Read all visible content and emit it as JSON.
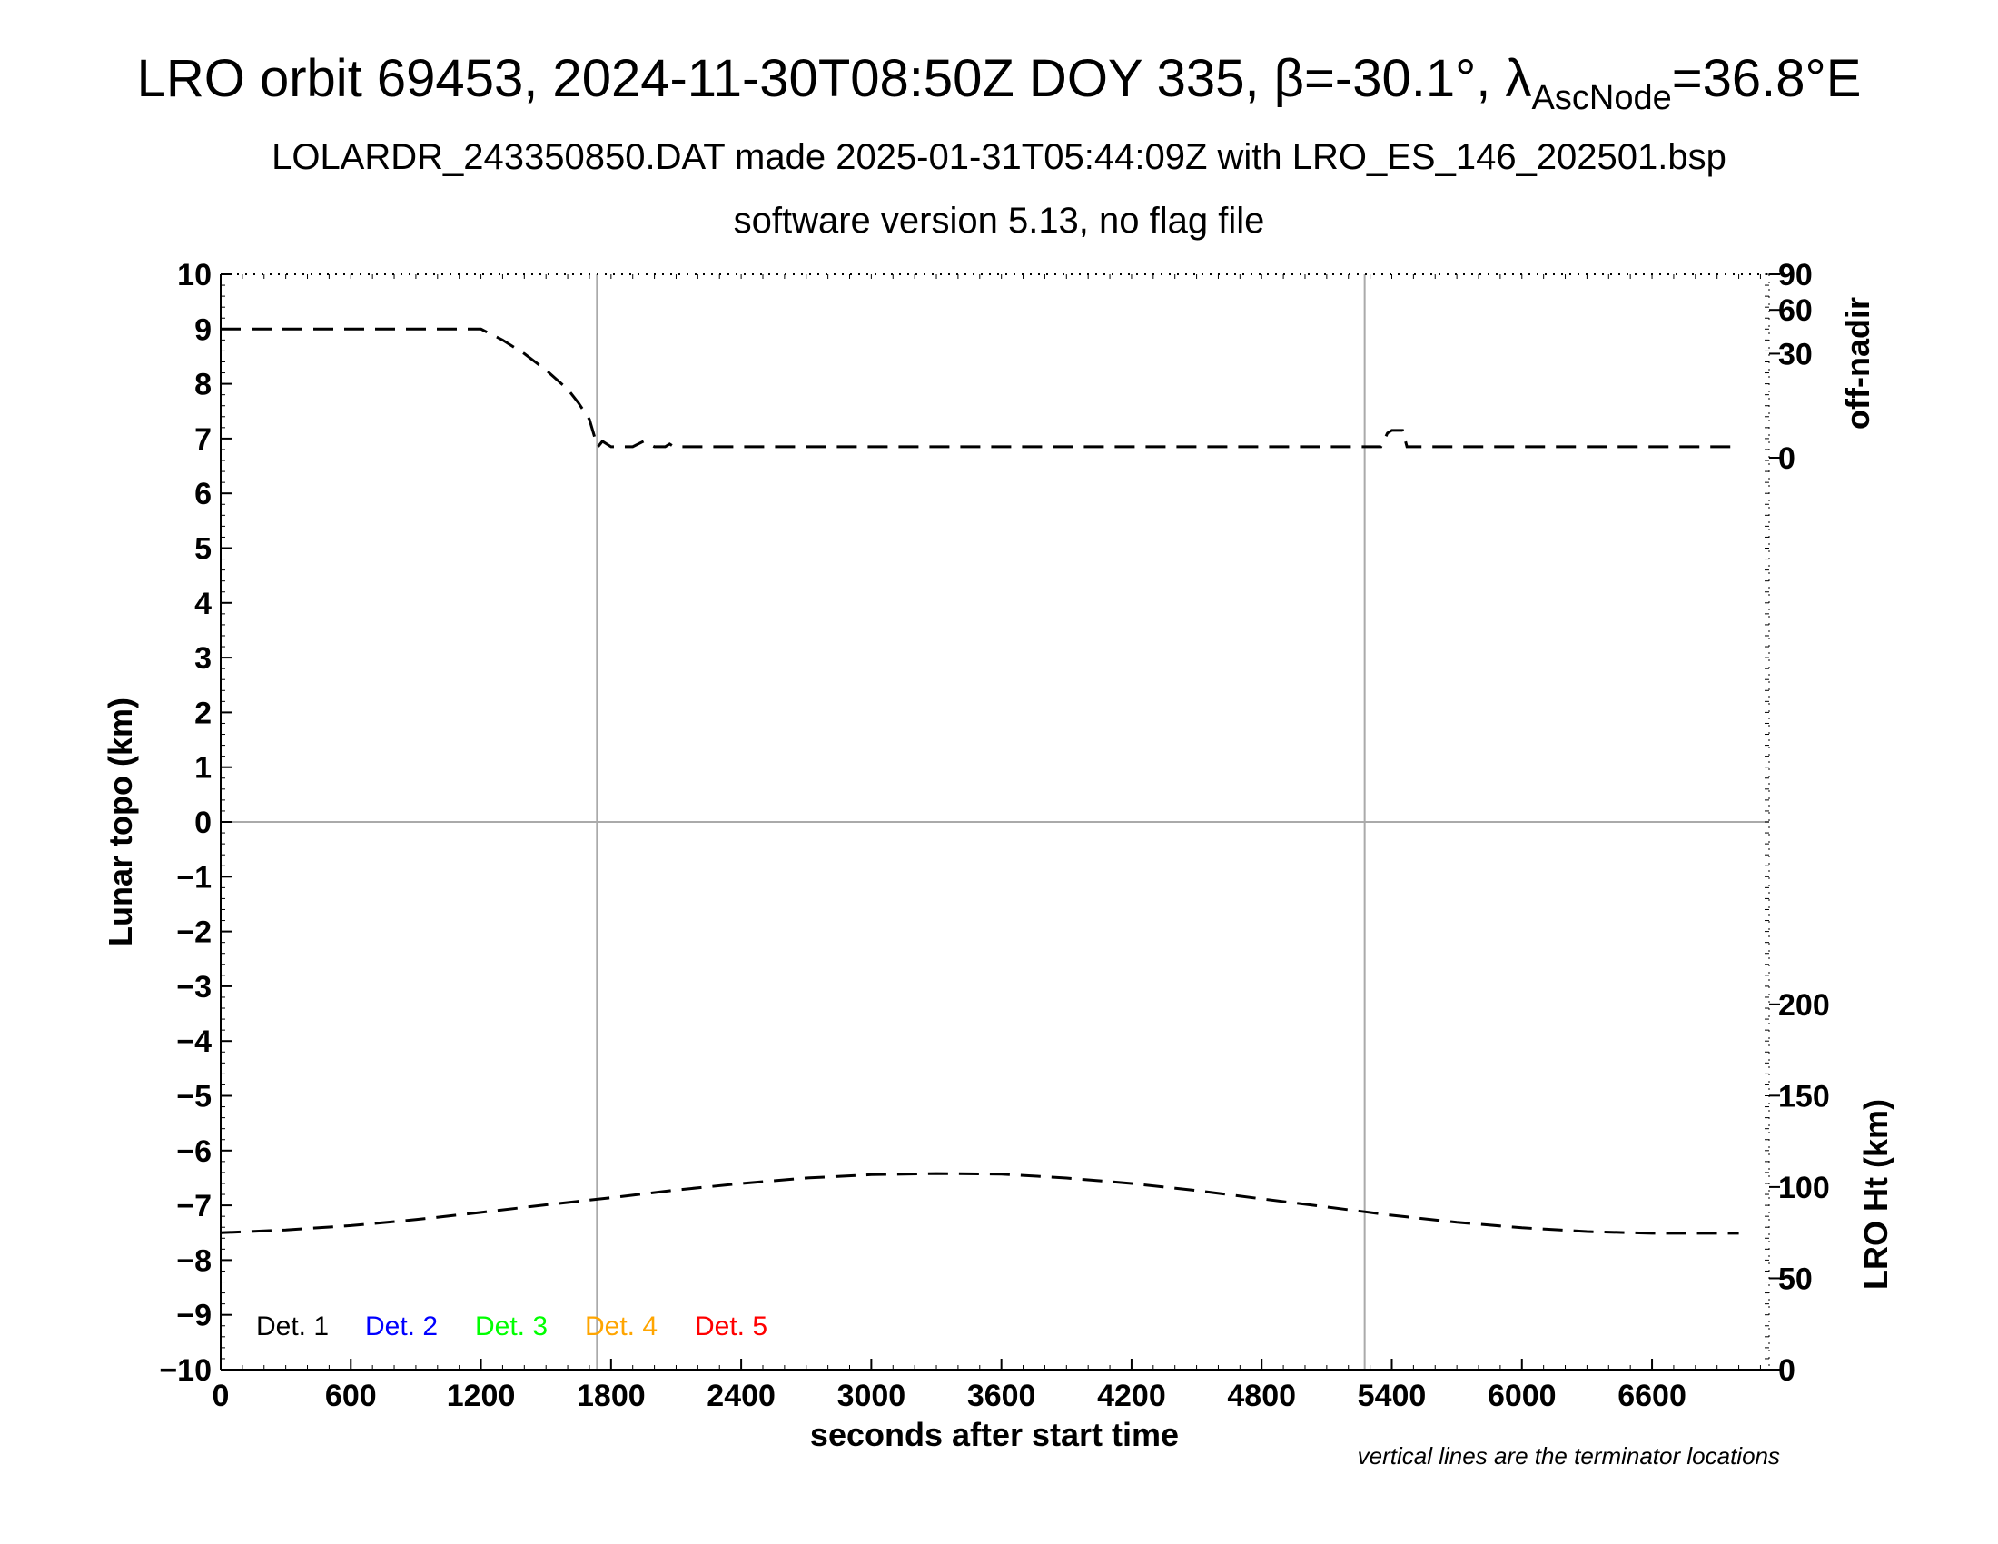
{
  "header": {
    "title_main": "LRO orbit 69453, 2024-11-30T08:50Z DOY 335, β=-30.1°, λ",
    "title_sub": "AscNode",
    "title_tail": "=36.8°E",
    "subtitle": "LOLARDR_243350850.DAT made 2025-01-31T05:44:09Z with LRO_ES_146_202501.bsp",
    "subtitle2": "software version 5.13, no flag file"
  },
  "footnote": "vertical lines are the terminator locations",
  "chart_data": {
    "type": "line",
    "xlabel": "seconds after start time",
    "ylabel_left": "Lunar topo (km)",
    "ylabel_right_top": "off-nadir",
    "ylabel_right_bottom": "LRO Ht (km)",
    "xlim": [
      0,
      7140
    ],
    "ylim_left": [
      -10,
      10
    ],
    "x_ticks": [
      "0",
      "600",
      "1200",
      "1800",
      "2400",
      "3000",
      "3600",
      "4200",
      "4800",
      "5400",
      "6000",
      "6600"
    ],
    "x_tick_values": [
      0,
      600,
      1200,
      1800,
      2400,
      3000,
      3600,
      4200,
      4800,
      5400,
      6000,
      6600
    ],
    "y_ticks_left": [
      "10",
      "9",
      "8",
      "7",
      "6",
      "5",
      "4",
      "3",
      "2",
      "1",
      "0",
      "−1",
      "−2",
      "−3",
      "−4",
      "−5",
      "−6",
      "−7",
      "−8",
      "−9",
      "−10"
    ],
    "y_tick_values_left": [
      10,
      9,
      8,
      7,
      6,
      5,
      4,
      3,
      2,
      1,
      0,
      -1,
      -2,
      -3,
      -4,
      -5,
      -6,
      -7,
      -8,
      -9,
      -10
    ],
    "off_nadir_ticks": [
      "90",
      "60",
      "30",
      "0"
    ],
    "off_nadir_tick_values": [
      90,
      60,
      30,
      0
    ],
    "lro_ht_ticks": [
      "200",
      "150",
      "100",
      "50",
      "0"
    ],
    "lro_ht_tick_values": [
      200,
      150,
      100,
      50,
      0
    ],
    "terminator_x": [
      1735,
      5275
    ],
    "legend": [
      {
        "label": "Det. 1",
        "color": "#000000"
      },
      {
        "label": "Det. 2",
        "color": "#0000ff"
      },
      {
        "label": "Det. 3",
        "color": "#00ff00"
      },
      {
        "label": "Det. 4",
        "color": "#ffa500"
      },
      {
        "label": "Det. 5",
        "color": "#ff0000"
      }
    ],
    "series": [
      {
        "x": [
          0,
          300,
          600,
          900,
          1200,
          1300,
          1400,
          1500,
          1600,
          1650,
          1700,
          1730,
          1740,
          1760,
          1800,
          1900,
          1950,
          2000,
          2050,
          2070,
          2090,
          2100,
          2200,
          2400,
          3000,
          3600,
          4200,
          4800,
          5300,
          5350,
          5380,
          5400,
          5420,
          5450,
          5470,
          5500,
          5600,
          6000,
          6600,
          7000
        ],
        "values": [
          9.0,
          9.0,
          9.0,
          9.0,
          9.0,
          8.8,
          8.55,
          8.25,
          7.9,
          7.65,
          7.35,
          6.95,
          6.85,
          6.95,
          6.85,
          6.85,
          6.95,
          6.85,
          6.85,
          6.9,
          6.85,
          6.85,
          6.85,
          6.85,
          6.85,
          6.85,
          6.85,
          6.85,
          6.85,
          6.85,
          7.1,
          7.15,
          7.15,
          7.15,
          6.85,
          6.85,
          6.85,
          6.85,
          6.85,
          6.85
        ]
      },
      {
        "x": [
          0,
          300,
          600,
          900,
          1200,
          1500,
          1800,
          2100,
          2400,
          2700,
          3000,
          3300,
          3600,
          3900,
          4200,
          4500,
          4800,
          5100,
          5400,
          5700,
          6000,
          6300,
          6600,
          7000
        ],
        "values": [
          -7.5,
          -7.45,
          -7.37,
          -7.26,
          -7.13,
          -6.99,
          -6.86,
          -6.72,
          -6.6,
          -6.5,
          -6.44,
          -6.42,
          -6.43,
          -6.5,
          -6.6,
          -6.73,
          -6.88,
          -7.03,
          -7.18,
          -7.31,
          -7.41,
          -7.48,
          -7.51,
          -7.51
        ]
      }
    ]
  }
}
